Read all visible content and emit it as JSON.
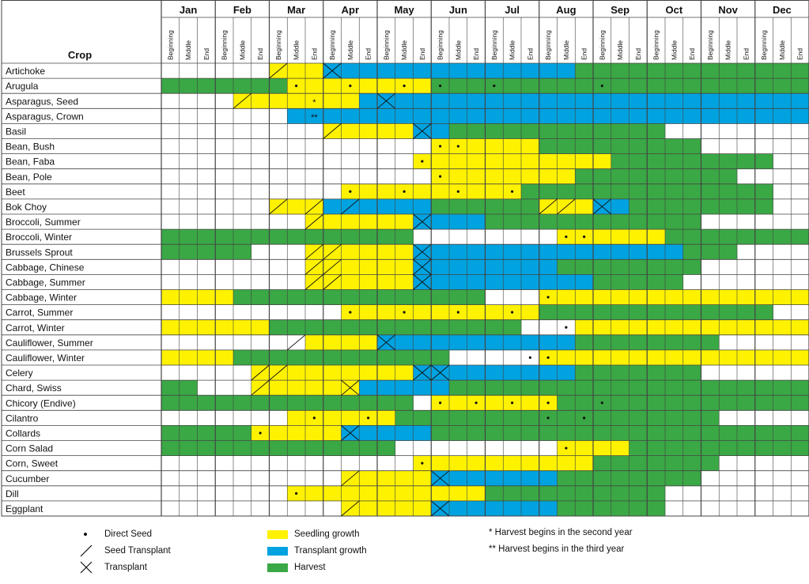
{
  "chart_data": {
    "type": "table",
    "row_header": "Crop",
    "months": [
      "Jan",
      "Feb",
      "Mar",
      "Apr",
      "May",
      "Jun",
      "Jul",
      "Aug",
      "Sep",
      "Oct",
      "Nov",
      "Dec"
    ],
    "periods": [
      "Beginning",
      "Middle",
      "End"
    ],
    "cell_codes": {
      "_": "empty",
      "Y": "Seedling growth",
      "B": "Transplant growth",
      "G": "Harvest"
    },
    "marker_codes": {
      "d": "Direct Seed",
      "s": "Seed Transplant",
      "t": "Transplant",
      "*": "Harvest begins in the second year",
      "**": "Harvest begins in the third year"
    },
    "crops": [
      {
        "name": "Artichoke",
        "cells": "______YYYBBBBBBBBBBBBBBGGGGGGGGGGGGG",
        "marks": {
          "6": "s",
          "9": "t"
        }
      },
      {
        "name": "Arugula",
        "cells": "GGGGGGGYYYYYYYYGGGGGGGGGGGGGGGGGGGGG",
        "marks": {
          "7": "d",
          "10": "d",
          "13": "d",
          "15": "d",
          "18": "d",
          "24": "d"
        }
      },
      {
        "name": "Asparagus, Seed",
        "cells": "____YYYYYYYBBBBBBBBBBBBBBBBBBBBBBBBB",
        "marks": {
          "4": "s",
          "8": "*",
          "12": "t"
        }
      },
      {
        "name": "Asparagus, Crown",
        "cells": "_______BBBBBBBBBBBBBBBBBBBBBBBBBBBBB",
        "marks": {
          "8": "**"
        }
      },
      {
        "name": "Basil",
        "cells": "_________YYYYYBBGGGGGGGGGGGG________",
        "marks": {
          "9": "s",
          "14": "t"
        }
      },
      {
        "name": "Bean, Bush",
        "cells": "_______________YYYYYYGGGGGGGGG______",
        "marks": {
          "15": "d",
          "16": "d"
        }
      },
      {
        "name": "Bean, Faba",
        "cells": "______________YYYYYYYYYYYGGGGGGGGG__",
        "marks": {
          "14": "d"
        }
      },
      {
        "name": "Bean, Pole",
        "cells": "_______________YYYYYYYYGGGGGGGGG____",
        "marks": {
          "15": "d"
        }
      },
      {
        "name": "Beet",
        "cells": "__________YYYYYYYYYYGGGGGGGGGGGGGG__",
        "marks": {
          "10": "d",
          "13": "d",
          "16": "d",
          "19": "d"
        }
      },
      {
        "name": "Bok Choy",
        "cells": "______YYYBBBBBBGGGGGGYYYBBGGGGGGGG__",
        "marks": {
          "6": "s",
          "8": "s",
          "10": "s",
          "21": "s",
          "22": "s",
          "24": "t"
        }
      },
      {
        "name": "Broccoli, Summer",
        "cells": "________YYYYYYBBBBGGGGGGGGGGGG______",
        "marks": {
          "8": "s",
          "14": "t"
        }
      },
      {
        "name": "Broccoli, Winter",
        "cells": "GGGGGGGGGGGGGG________YYYYYYGGGGGGGG",
        "marks": {
          "22": "d",
          "23": "d"
        }
      },
      {
        "name": "Brussels Sprout",
        "cells": "GGGGG___YYYYYYBBBBBBBBBBBBBBBGGG____",
        "marks": {
          "8": "s",
          "9": "s",
          "14": "t"
        }
      },
      {
        "name": "Cabbage, Chinese",
        "cells": "________YYYYYYBBBBBBBBGGGGGGGG______",
        "marks": {
          "8": "s",
          "9": "s",
          "14": "t"
        }
      },
      {
        "name": "Cabbage, Summer",
        "cells": "________YYYYYYBBBBBBBBBBGGGGG_______",
        "marks": {
          "8": "s",
          "9": "s",
          "14": "t"
        }
      },
      {
        "name": "Cabbage, Winter",
        "cells": "YYYYGGGGGGGGGGGGGG___YYYYYYYYYYYYYYY",
        "marks": {
          "21": "d"
        }
      },
      {
        "name": "Carrot, Summer",
        "cells": "__________YYYYYYYYYYYGGGGGGGGGGGGG__",
        "marks": {
          "10": "d",
          "13": "d",
          "16": "d",
          "19": "d"
        }
      },
      {
        "name": "Carrot, Winter",
        "cells": "YYYYYYGGGGGGGGGGGGGG___YYYYYYYYYYYYY",
        "marks": {
          "22": "d"
        }
      },
      {
        "name": "Cauliflower, Summer",
        "cells": "________YYYYBBBBBBBBBBBGGGGGGGG_____",
        "marks": {
          "7": "s",
          "12": "t"
        }
      },
      {
        "name": "Cauliflower, Winter",
        "cells": "YYYYGGGGGGGGGGGG_____YYYYYYYYYYYYYYY",
        "marks": {
          "20": "d",
          "21": "d"
        }
      },
      {
        "name": "Celery",
        "cells": "_____YYYYYYYYYBBBBBBBBBGGGGGGG______",
        "marks": {
          "5": "s",
          "6": "s",
          "14": "t",
          "15": "t"
        }
      },
      {
        "name": "Chard, Swiss",
        "cells": "GG___YYYYYYBBBBBGGGGGGGGGGGGGGGGGGGG",
        "marks": {
          "5": "s",
          "10": "t"
        }
      },
      {
        "name": "Chicory (Endive)",
        "cells": "GGGGGGGGGGGGGG_YYYYYYYGGGGGGGGGGGGGG",
        "marks": {
          "15": "d",
          "17": "d",
          "19": "d",
          "21": "d",
          "24": "d"
        }
      },
      {
        "name": "Cilantro",
        "cells": "_______YYYYYYGGGGGGGGGGGGGGGGGG_____",
        "marks": {
          "8": "d",
          "11": "d",
          "21": "d",
          "23": "d"
        }
      },
      {
        "name": "Collards",
        "cells": "GGGGGYYYYYBBBBBGGGGGGGGGGGGGGGGGGGGG",
        "marks": {
          "5": "d",
          "10": "t"
        }
      },
      {
        "name": "Corn Salad",
        "cells": "GGGGGGGGGGGGG_________YYYYGGGGGGGGGG",
        "marks": {
          "22": "d"
        }
      },
      {
        "name": "Corn, Sweet",
        "cells": "______________YYYYYYYYYYGGGGGGG_____",
        "marks": {
          "14": "d"
        }
      },
      {
        "name": "Cucumber",
        "cells": "__________YYYYYBBBBBBBGGGGGGGG______",
        "marks": {
          "10": "s",
          "15": "t"
        }
      },
      {
        "name": "Dill",
        "cells": "_______YYYYYYYYYYYGGGGGGGGGG________",
        "marks": {
          "7": "d"
        }
      },
      {
        "name": "Eggplant",
        "cells": "__________YYYYYBBBBBBBGGGGGG________",
        "marks": {
          "10": "s",
          "15": "t"
        }
      }
    ],
    "colors": {
      "Y": "#fff200",
      "B": "#00a2e0",
      "G": "#3aa845",
      "_": "#ffffff"
    }
  },
  "legend": {
    "direct_seed": "Direct Seed",
    "seed_transplant": "Seed Transplant",
    "transplant": "Transplant",
    "seedling_growth": "Seedling growth",
    "transplant_growth": "Transplant growth",
    "harvest": "Harvest",
    "note1": "* Harvest begins in the second year",
    "note2": "** Harvest begins in the third year"
  }
}
